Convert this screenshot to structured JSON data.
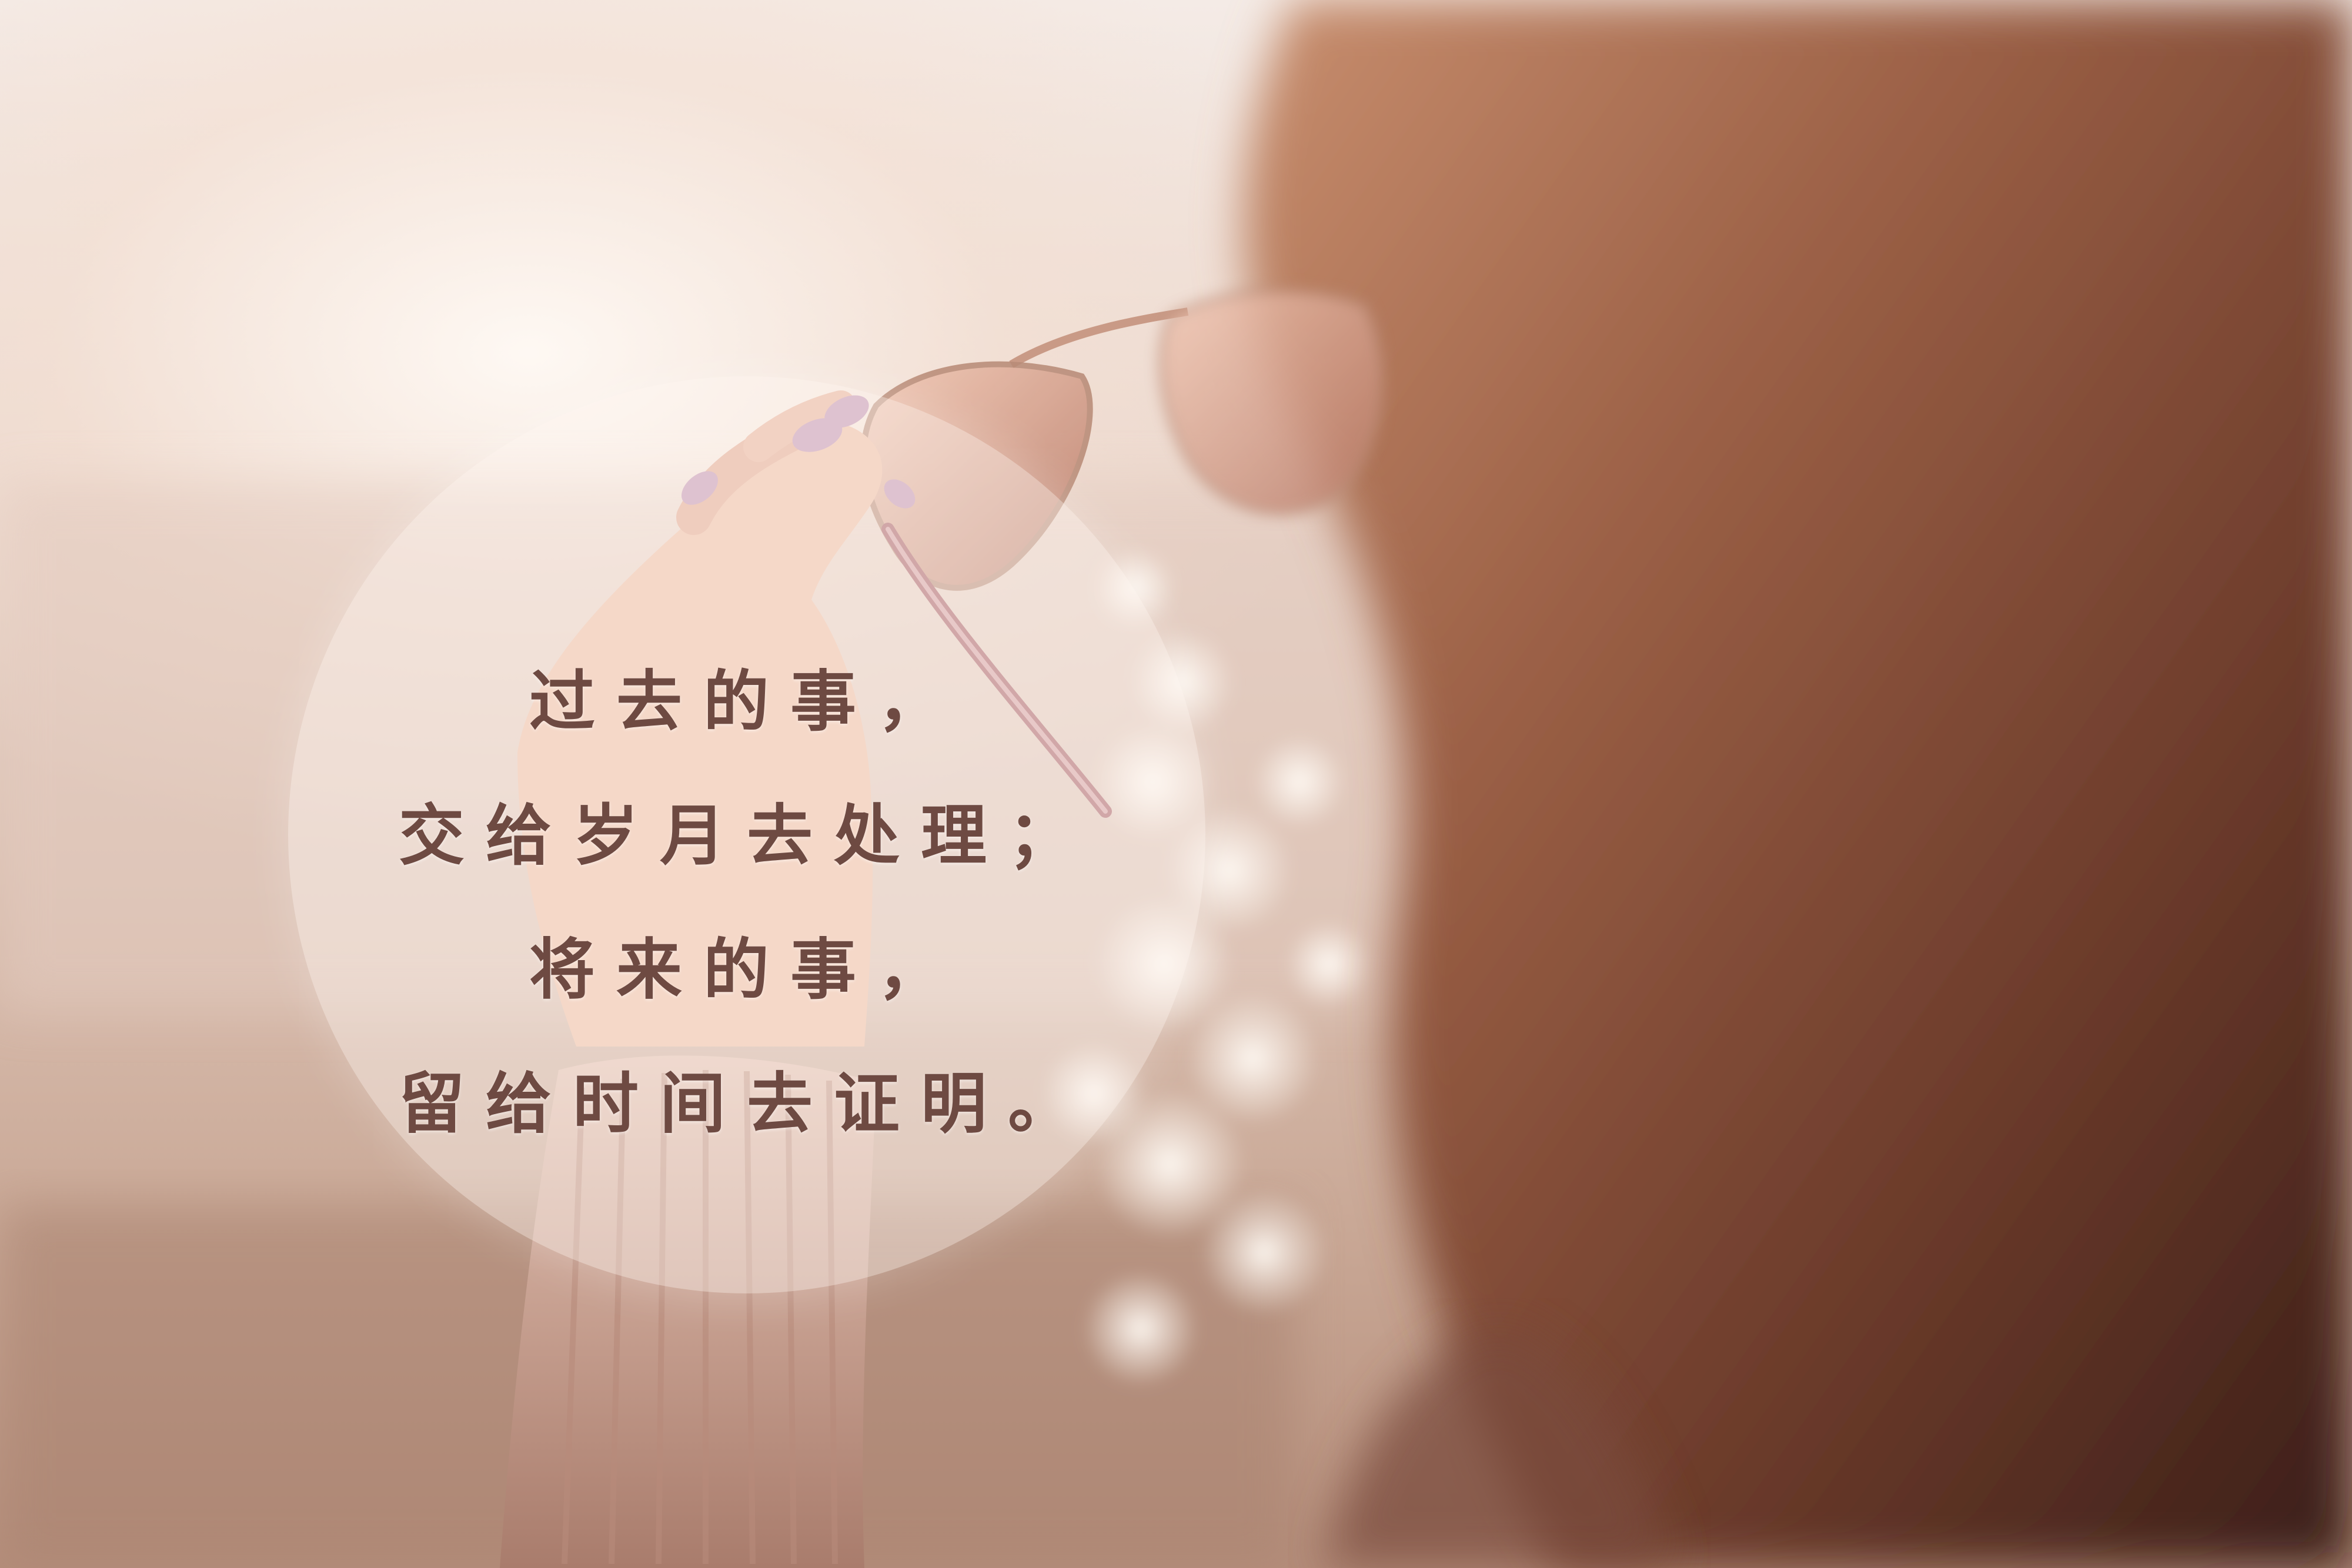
{
  "photo": {
    "subject": "woman-holding-sunglasses",
    "palette": {
      "sky": "#f4ebe6",
      "water": "#d8bfb1",
      "hair": "#6a3a2a",
      "skin": "#eec1aa",
      "sweater": "#c79c8c",
      "lens": "#b87a67"
    }
  },
  "quote": {
    "line1": "过去的事，",
    "line2": "交给岁月去处理；",
    "line3": "将来的事，",
    "line4": "留给时间去证明。",
    "color": "#6e4a42"
  }
}
